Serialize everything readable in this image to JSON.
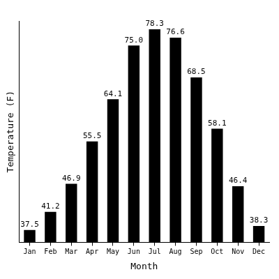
{
  "chart_data": {
    "type": "bar",
    "x_label": "Month",
    "y_label": "Temperature (F)",
    "categories": [
      "Jan",
      "Feb",
      "Mar",
      "Apr",
      "May",
      "Jun",
      "Jul",
      "Aug",
      "Sep",
      "Oct",
      "Nov",
      "Dec"
    ],
    "values": [
      37.5,
      41.2,
      46.9,
      55.5,
      64.1,
      75.0,
      78.3,
      76.6,
      68.5,
      58.1,
      46.4,
      38.3
    ],
    "value_labels": [
      "37.5",
      "41.2",
      "46.9",
      "55.5",
      "64.1",
      "75.0",
      "78.3",
      "76.6",
      "68.5",
      "58.1",
      "46.4",
      "38.3"
    ],
    "color": "#000000",
    "ylim": [
      35,
      80
    ],
    "grid": false,
    "data_labels": true,
    "tick_labels": "x"
  }
}
